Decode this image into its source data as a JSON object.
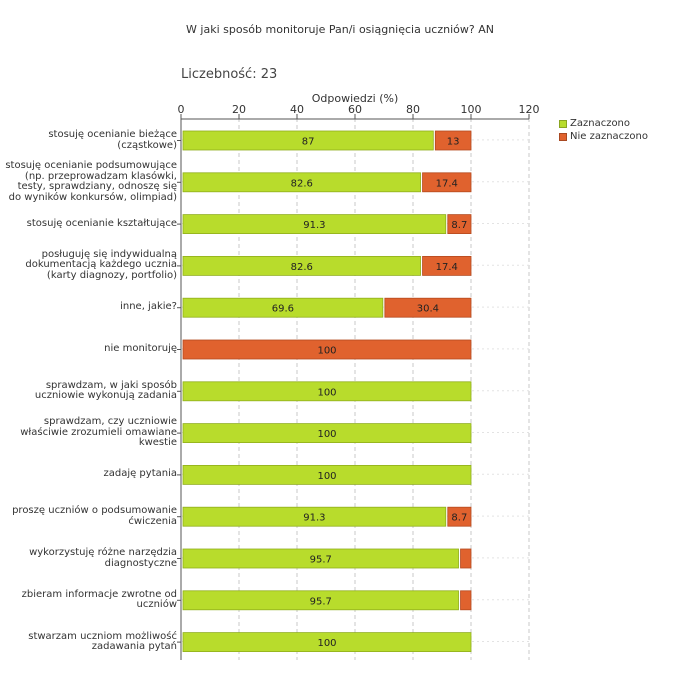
{
  "chart_data": {
    "type": "bar",
    "orientation": "horizontal",
    "stacked": true,
    "title": "W jaki sposób monitoruje Pan/i osiągnięcia uczniów?  AN",
    "subtitle": "Liczebność: 23",
    "xlabel": "Odpowiedzi (%)",
    "xlim": [
      0,
      120
    ],
    "xticks": [
      "0",
      "20",
      "40",
      "60",
      "80",
      "100",
      "120"
    ],
    "grid": true,
    "legend_position": "top-right",
    "categories": [
      "stosuję ocenianie bieżące (cząstkowe)",
      "stosuję ocenianie podsumowujące (np. przeprowadzam klasówki, testy, sprawdziany, odnoszę się do wyników konkursów, olimpiad)",
      "stosuję ocenianie kształtujące",
      "posługuję się indywidualną dokumentacją każdego ucznia (karty diagnozy, portfolio)",
      "inne, jakie?",
      "nie monitoruję",
      "sprawdzam, w jaki sposób uczniowie wykonują zadania",
      "sprawdzam, czy uczniowie właściwie zrozumieli omawiane kwestie",
      "zadaję pytania",
      "proszę uczniów o podsumowanie ćwiczenia",
      "wykorzystuję różne narzędzia diagnostyczne",
      "zbieram informacje zwrotne od uczniów",
      "stwarzam uczniom możliwość zadawania pytań"
    ],
    "series": [
      {
        "name": "Zaznaczono",
        "color": "#b8dc2c",
        "values": [
          87,
          82.6,
          91.3,
          82.6,
          69.6,
          0,
          100,
          100,
          100,
          91.3,
          95.7,
          95.7,
          100
        ],
        "labels": [
          "87",
          "82.6",
          "91.3",
          "82.6",
          "69.6",
          "",
          "100",
          "100",
          "100",
          "91.3",
          "95.7",
          "95.7",
          "100"
        ]
      },
      {
        "name": "Nie zaznaczono",
        "color": "#e0622e",
        "values": [
          13,
          17.4,
          8.7,
          17.4,
          30.4,
          100,
          0,
          0,
          0,
          8.7,
          4.3,
          4.3,
          0
        ],
        "labels": [
          "13",
          "17.4",
          "8.7",
          "17.4",
          "30.4",
          "100",
          "",
          "",
          "",
          "8.7",
          "",
          "",
          ""
        ]
      }
    ]
  }
}
